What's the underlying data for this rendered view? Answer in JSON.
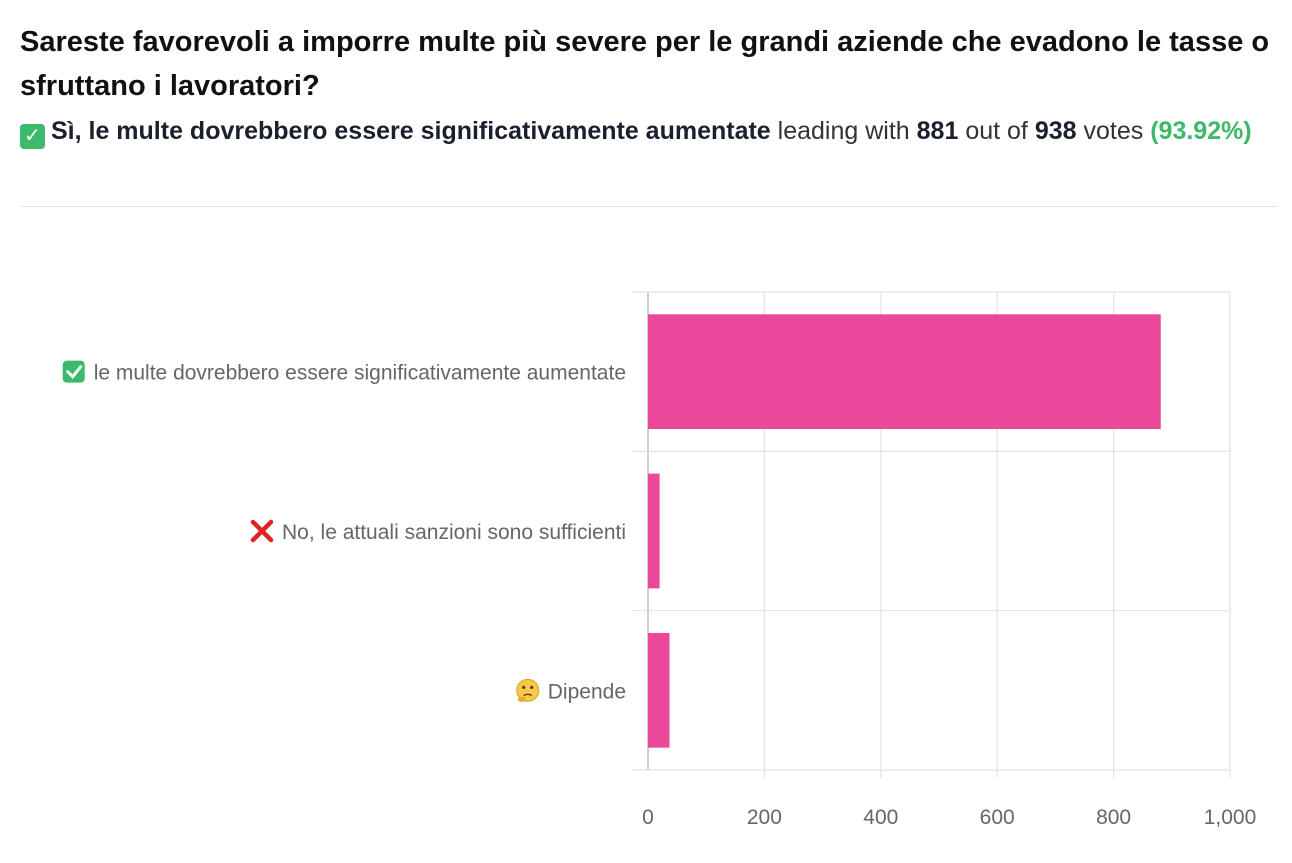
{
  "question": "Sareste favorevoli a imporre multe più severe per le grandi aziende che evadono le tasse o sfruttano i lavoratori?",
  "summary": {
    "leading_option": "Sì, le multe dovrebbero essere significativamente aumentate",
    "leading_text": "leading with",
    "leading_votes": "881",
    "out_of_text": "out of",
    "total_votes": "938",
    "votes_text": "votes",
    "percentage": "(93.92%)",
    "check_icon": "✓"
  },
  "colors": {
    "bar": "#ec4899",
    "accent_green": "#3cb96a",
    "x_mark": "#e02424"
  },
  "chart_data": {
    "type": "bar",
    "orientation": "horizontal",
    "categories": [
      "✅ Sì, le multe dovrebbero essere significativamente aumentate",
      "❌ No, le attuali sanzioni sono sufficienti",
      "🤔 Dipende"
    ],
    "category_text": [
      "le multe dovrebbero essere significativamente aumentate",
      "No, le attuali sanzioni sono sufficienti",
      "Dipende"
    ],
    "category_icons": [
      "check-icon",
      "x-mark-icon",
      "thinking-face-icon"
    ],
    "values": [
      881,
      20,
      37
    ],
    "xlim": [
      0,
      1000
    ],
    "xticks": [
      0,
      200,
      400,
      600,
      800,
      1000
    ],
    "xtick_labels": [
      "0",
      "200",
      "400",
      "600",
      "800",
      "1,000"
    ],
    "grid": true,
    "legend": "none"
  }
}
